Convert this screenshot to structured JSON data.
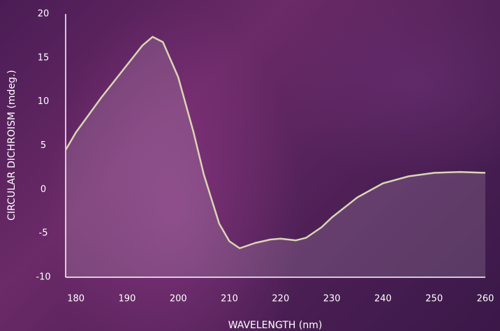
{
  "chart_data": {
    "type": "line",
    "x_label": "WAVELENGTH (nm)",
    "y_label": "CIRCULAR DICHROISM (mdeg.)",
    "x": [
      178,
      180,
      185,
      190,
      193,
      195,
      197,
      200,
      203,
      205,
      208,
      210,
      212,
      215,
      218,
      220,
      223,
      225,
      228,
      230,
      235,
      240,
      245,
      250,
      255,
      260
    ],
    "series": [
      {
        "color": "#d9d6b4",
        "values": [
          4.5,
          6.5,
          10.5,
          14.2,
          16.4,
          17.4,
          16.8,
          12.8,
          6.5,
          1.7,
          -3.9,
          -5.9,
          -6.7,
          -6.1,
          -5.7,
          -5.6,
          -5.8,
          -5.5,
          -4.3,
          -3.2,
          -0.9,
          0.7,
          1.5,
          1.9,
          2.0,
          1.9
        ]
      }
    ],
    "xlim": [
      178,
      260
    ],
    "xticks": [
      180,
      190,
      200,
      210,
      220,
      230,
      240,
      250,
      260
    ],
    "ylim": [
      -10,
      20
    ],
    "yticks": [
      20,
      15,
      10,
      5,
      0,
      -5,
      -10
    ],
    "fill_area": true,
    "grid": false
  }
}
